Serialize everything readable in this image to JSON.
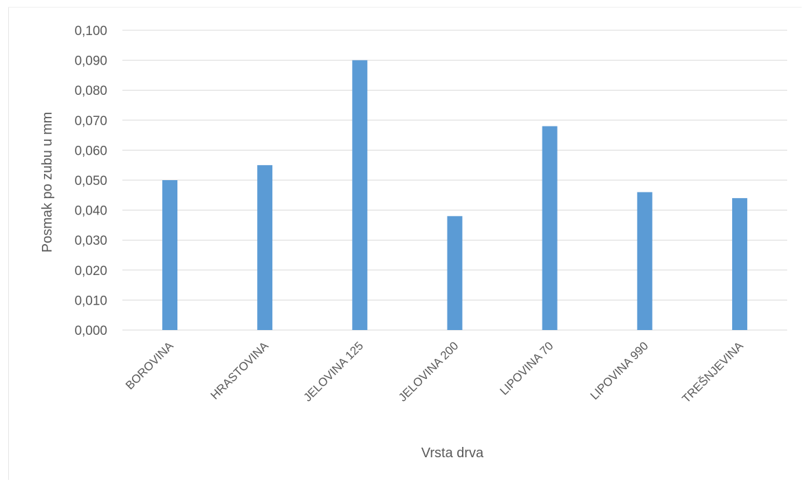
{
  "chart_data": {
    "type": "bar",
    "title": "",
    "xlabel": "Vrsta drva",
    "ylabel": "Posmak po zubu u mm",
    "categories": [
      "BOROVINA",
      "HRASTOVINA",
      "JELOVINA 125",
      "JELOVINA 200",
      "LIPOVINA 70",
      "LIPOVINA 990",
      "TREŠNJEVINA"
    ],
    "values": [
      0.05,
      0.055,
      0.09,
      0.038,
      0.068,
      0.046,
      0.044
    ],
    "ylim": [
      0,
      0.1
    ],
    "yticks": [
      "0,000",
      "0,010",
      "0,020",
      "0,030",
      "0,040",
      "0,050",
      "0,060",
      "0,070",
      "0,080",
      "0,090",
      "0,100"
    ],
    "grid": true,
    "legend": "none",
    "bar_color": "#5b9bd5",
    "grid_color": "#d9d9d9"
  }
}
